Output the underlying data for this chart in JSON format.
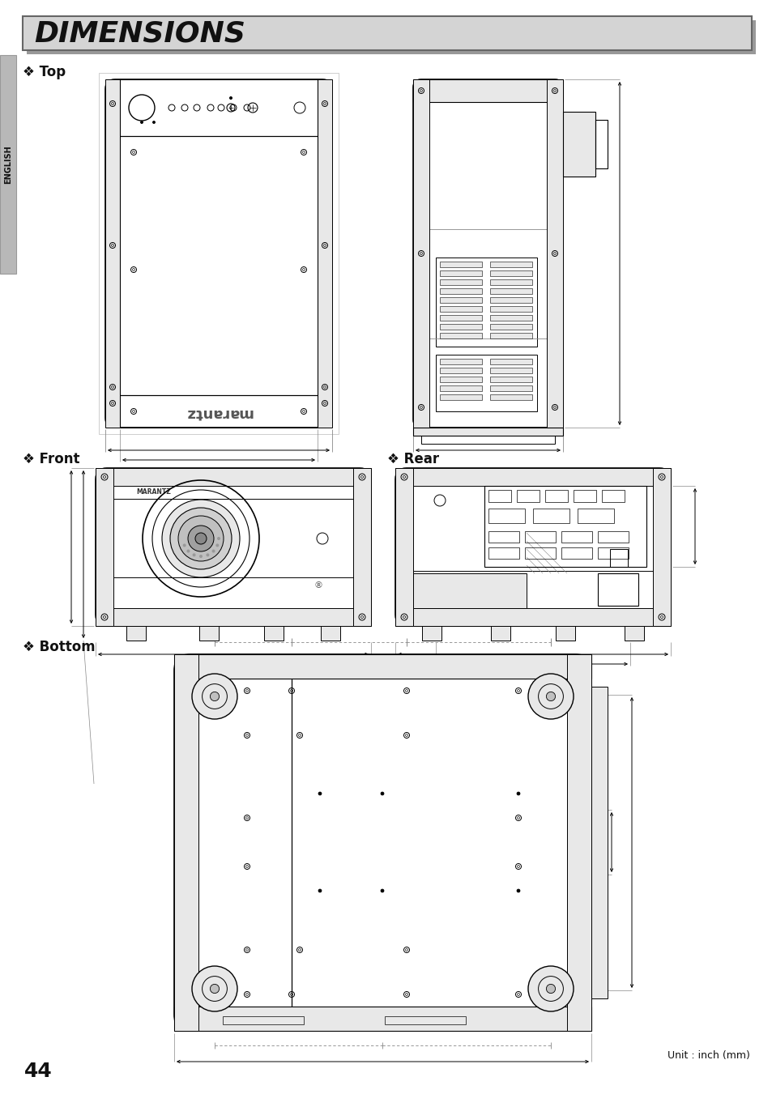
{
  "title": "DIMENSIONS",
  "title_bg": "#d4d4d4",
  "title_shadow": "#999999",
  "page_number": "44",
  "unit_text": "Unit : inch (mm)",
  "section_top": "Top",
  "section_front": "Front",
  "section_rear": "Rear",
  "section_bottom": "Bottom",
  "english_sidebar": "ENGLISH",
  "bg_color": "#ffffff",
  "line_color": "#000000",
  "gray_light": "#e8e8e8",
  "gray_mid": "#c0c0c0",
  "gray_dark": "#888888"
}
